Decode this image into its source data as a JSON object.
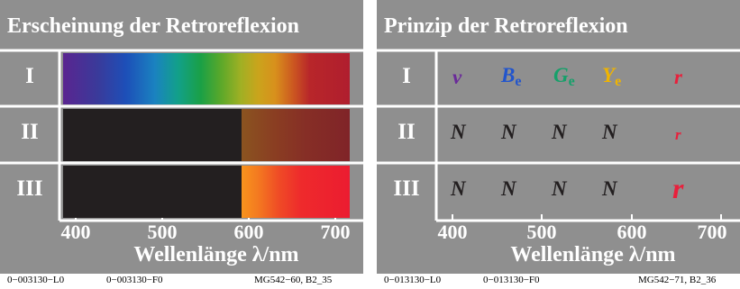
{
  "left": {
    "title": "Erscheinung der Retroreflexion",
    "rows": [
      "I",
      "II",
      "III"
    ],
    "ticks": [
      "400",
      "500",
      "600",
      "700"
    ],
    "axis_title": "Wellenlänge λ/nm",
    "footer": [
      "0−003130−L0",
      "0−003130−F0",
      "MG542−60, B2_35"
    ]
  },
  "right": {
    "title": "Prinzip der Retroreflexion",
    "rows": [
      "I",
      "II",
      "III"
    ],
    "ticks": [
      "400",
      "500",
      "600",
      "700"
    ],
    "axis_title": "Wellenlänge λ/nm",
    "footer": [
      "0−013130−L0",
      "0−013130−F0",
      "MG542−71, B2_36"
    ],
    "row1": {
      "v": "v",
      "B": "B",
      "G": "G",
      "Y": "Y",
      "sub": "e",
      "r": "r"
    },
    "row2": {
      "n1": "N",
      "n2": "N",
      "n3": "N",
      "n4": "N",
      "r": "r"
    },
    "row3": {
      "n1": "N",
      "n2": "N",
      "n3": "N",
      "n4": "N",
      "r": "r"
    }
  },
  "colors": {
    "panel_bg": "#8f8f8f",
    "dark": "#231f20",
    "violet": "#6a2a9a",
    "blue": "#2255cc",
    "green": "#16a06a",
    "yellow": "#f0b400",
    "red": "#e8203c"
  }
}
